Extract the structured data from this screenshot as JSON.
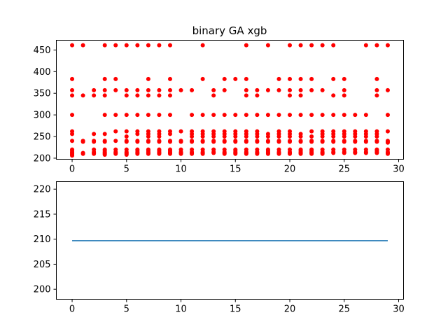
{
  "chart_data": [
    {
      "type": "scatter",
      "title": "binary GA xgb",
      "xlabel": "",
      "ylabel": "",
      "xlim": [
        -1.45,
        30.45
      ],
      "ylim": [
        197.5,
        472.5
      ],
      "xticks": [
        0,
        5,
        10,
        15,
        20,
        25,
        30
      ],
      "yticks": [
        200,
        250,
        300,
        350,
        400,
        450
      ],
      "grid": false,
      "marker_color": "#ff0000",
      "x": [
        0,
        0,
        0,
        0,
        0,
        0,
        0,
        0,
        0,
        0,
        0,
        0,
        0,
        0,
        0,
        1,
        1,
        1,
        1,
        1,
        1,
        2,
        2,
        2,
        2,
        2,
        2,
        2,
        2,
        2,
        3,
        3,
        3,
        3,
        3,
        3,
        3,
        3,
        3,
        3,
        3,
        3,
        3,
        3,
        4,
        4,
        4,
        4,
        4,
        4,
        4,
        4,
        4,
        4,
        5,
        5,
        5,
        5,
        5,
        5,
        5,
        5,
        5,
        5,
        5,
        5,
        5,
        6,
        6,
        6,
        6,
        6,
        6,
        6,
        6,
        6,
        6,
        6,
        6,
        6,
        7,
        7,
        7,
        7,
        7,
        7,
        7,
        7,
        7,
        7,
        7,
        7,
        7,
        7,
        7,
        8,
        8,
        8,
        8,
        8,
        8,
        8,
        8,
        8,
        8,
        8,
        8,
        8,
        8,
        9,
        9,
        9,
        9,
        9,
        9,
        9,
        9,
        9,
        9,
        9,
        9,
        9,
        9,
        10,
        10,
        10,
        10,
        10,
        10,
        10,
        10,
        11,
        11,
        11,
        11,
        11,
        11,
        11,
        11,
        11,
        11,
        11,
        12,
        12,
        12,
        12,
        12,
        12,
        12,
        12,
        12,
        12,
        12,
        12,
        13,
        13,
        13,
        13,
        13,
        13,
        13,
        13,
        13,
        13,
        13,
        14,
        14,
        14,
        14,
        14,
        14,
        14,
        14,
        14,
        14,
        14,
        14,
        15,
        15,
        15,
        15,
        15,
        15,
        15,
        15,
        15,
        15,
        15,
        15,
        16,
        16,
        16,
        16,
        16,
        16,
        16,
        16,
        16,
        16,
        16,
        16,
        16,
        16,
        17,
        17,
        17,
        17,
        17,
        17,
        17,
        17,
        17,
        17,
        17,
        17,
        18,
        18,
        18,
        18,
        18,
        18,
        18,
        18,
        18,
        18,
        18,
        18,
        19,
        19,
        19,
        19,
        19,
        19,
        19,
        19,
        19,
        19,
        19,
        19,
        20,
        20,
        20,
        20,
        20,
        20,
        20,
        20,
        20,
        20,
        20,
        20,
        20,
        20,
        21,
        21,
        21,
        21,
        21,
        21,
        21,
        21,
        21,
        21,
        21,
        21,
        21,
        21,
        22,
        22,
        22,
        22,
        22,
        22,
        22,
        22,
        22,
        22,
        22,
        22,
        22,
        23,
        23,
        23,
        23,
        23,
        23,
        23,
        23,
        23,
        23,
        23,
        23,
        24,
        24,
        24,
        24,
        24,
        24,
        24,
        24,
        24,
        24,
        24,
        24,
        25,
        25,
        25,
        25,
        25,
        25,
        25,
        25,
        25,
        25,
        25,
        25,
        26,
        26,
        26,
        26,
        26,
        26,
        26,
        26,
        26,
        27,
        27,
        27,
        27,
        27,
        27,
        27,
        27,
        27,
        27,
        28,
        28,
        28,
        28,
        28,
        28,
        28,
        28,
        28,
        28,
        28,
        28,
        28,
        29,
        29,
        29,
        29,
        29,
        29,
        29,
        29,
        29,
        29,
        29
      ],
      "y": [
        461,
        383,
        357,
        345,
        300,
        262,
        256,
        240,
        220,
        217,
        214,
        212,
        210,
        208,
        206,
        461,
        345,
        240,
        238,
        212,
        210,
        357,
        345,
        256,
        240,
        238,
        220,
        214,
        212,
        210,
        461,
        383,
        357,
        345,
        300,
        256,
        240,
        238,
        220,
        217,
        214,
        212,
        210,
        208,
        461,
        383,
        357,
        300,
        262,
        240,
        220,
        214,
        212,
        210,
        461,
        357,
        345,
        300,
        262,
        250,
        240,
        238,
        220,
        214,
        212,
        210,
        208,
        461,
        357,
        345,
        300,
        262,
        256,
        240,
        238,
        220,
        217,
        214,
        212,
        210,
        461,
        383,
        357,
        345,
        300,
        262,
        256,
        250,
        240,
        238,
        220,
        217,
        214,
        212,
        210,
        461,
        357,
        345,
        300,
        262,
        256,
        250,
        240,
        238,
        220,
        217,
        214,
        212,
        210,
        461,
        383,
        357,
        345,
        300,
        262,
        256,
        240,
        238,
        220,
        217,
        214,
        212,
        210,
        357,
        262,
        240,
        238,
        220,
        214,
        212,
        210,
        357,
        300,
        262,
        256,
        250,
        240,
        238,
        220,
        214,
        212,
        210,
        461,
        383,
        300,
        262,
        256,
        250,
        240,
        238,
        220,
        214,
        212,
        210,
        357,
        345,
        300,
        262,
        256,
        250,
        240,
        238,
        220,
        214,
        212,
        383,
        357,
        300,
        262,
        256,
        250,
        240,
        238,
        220,
        214,
        212,
        210,
        383,
        300,
        262,
        256,
        250,
        240,
        238,
        220,
        217,
        214,
        212,
        210,
        461,
        383,
        357,
        345,
        300,
        262,
        256,
        250,
        240,
        238,
        220,
        214,
        212,
        210,
        357,
        345,
        300,
        262,
        256,
        250,
        240,
        238,
        220,
        214,
        212,
        210,
        461,
        357,
        300,
        256,
        250,
        240,
        238,
        220,
        217,
        214,
        212,
        210,
        383,
        357,
        300,
        262,
        256,
        250,
        240,
        238,
        220,
        214,
        212,
        210,
        461,
        383,
        357,
        345,
        300,
        262,
        256,
        250,
        240,
        238,
        220,
        214,
        212,
        210,
        461,
        383,
        357,
        345,
        300,
        256,
        250,
        240,
        238,
        220,
        217,
        214,
        212,
        210,
        461,
        383,
        357,
        300,
        262,
        250,
        240,
        238,
        220,
        217,
        214,
        212,
        210,
        461,
        357,
        300,
        262,
        256,
        250,
        240,
        238,
        220,
        214,
        212,
        210,
        461,
        383,
        345,
        300,
        262,
        256,
        250,
        240,
        238,
        220,
        214,
        212,
        383,
        357,
        345,
        300,
        262,
        256,
        250,
        240,
        238,
        220,
        214,
        212,
        300,
        262,
        256,
        250,
        240,
        238,
        220,
        214,
        212,
        461,
        300,
        262,
        256,
        250,
        240,
        238,
        220,
        214,
        212,
        461,
        383,
        357,
        345,
        262,
        256,
        250,
        240,
        238,
        220,
        217,
        214,
        212,
        461,
        357,
        300,
        262,
        240,
        238,
        236,
        220,
        214,
        212,
        210
      ]
    },
    {
      "type": "line",
      "title": "",
      "xlabel": "",
      "ylabel": "",
      "xlim": [
        -1.45,
        30.45
      ],
      "ylim": [
        198.0,
        221.5
      ],
      "xticks": [
        0,
        5,
        10,
        15,
        20,
        25,
        30
      ],
      "yticks": [
        200,
        205,
        210,
        215,
        220
      ],
      "grid": false,
      "line_color": "#1f77b4",
      "x": [
        0,
        1,
        2,
        3,
        4,
        5,
        6,
        7,
        8,
        9,
        10,
        11,
        12,
        13,
        14,
        15,
        16,
        17,
        18,
        19,
        20,
        21,
        22,
        23,
        24,
        25,
        26,
        27,
        28,
        29
      ],
      "y": [
        209.7,
        209.7,
        209.7,
        209.7,
        209.7,
        209.7,
        209.7,
        209.7,
        209.7,
        209.7,
        209.7,
        209.7,
        209.7,
        209.7,
        209.7,
        209.7,
        209.7,
        209.7,
        209.7,
        209.7,
        209.7,
        209.7,
        209.7,
        209.7,
        209.7,
        209.7,
        209.7,
        209.7,
        209.7,
        209.7
      ]
    }
  ]
}
